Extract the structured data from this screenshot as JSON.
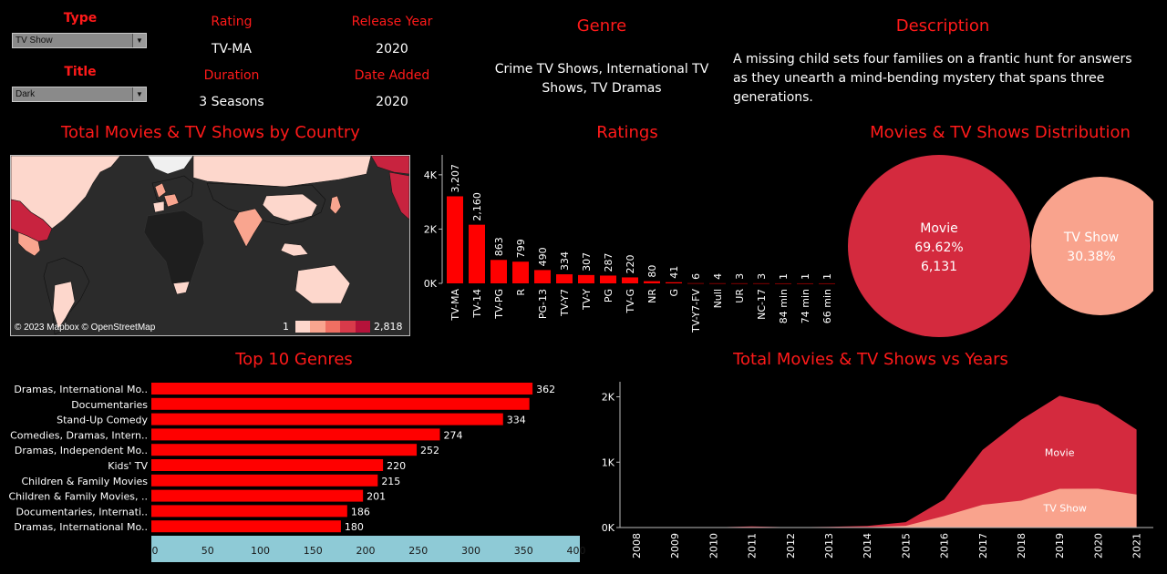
{
  "filters": {
    "type_label": "Type",
    "type_value": "TV Show",
    "title_label": "Title",
    "title_value": "Dark"
  },
  "details": {
    "rating_label": "Rating",
    "rating_value": "TV-MA",
    "release_label": "Release Year",
    "release_value": "2020",
    "duration_label": "Duration",
    "duration_value": "3 Seasons",
    "added_label": "Date Added",
    "added_value": "2020",
    "genre_label": "Genre",
    "genre_line1": "Crime TV Shows, International TV",
    "genre_line2": "Shows, TV Dramas",
    "desc_label": "Description",
    "desc_line1": "A missing child sets four families on a frantic hunt for answers",
    "desc_line2": "as they unearth a mind-bending mystery that spans three",
    "desc_line3": "generations."
  },
  "map": {
    "title": "Total Movies & TV Shows by Country",
    "attribution": "© 2023 Mapbox © OpenStreetMap",
    "legend_min": "1",
    "legend_max": "2,818",
    "legend_colors": [
      "#fdd7cc",
      "#f9a58f",
      "#ef6f62",
      "#d83a4a",
      "#b5123a"
    ]
  },
  "ratings": {
    "title": "Ratings",
    "y_ticks": [
      "4K",
      "2K",
      "0K"
    ]
  },
  "distribution": {
    "title": "Movies & TV Shows Distribution",
    "movie_label": "Movie",
    "movie_pct": "69.62%",
    "movie_count": "6,131",
    "tv_label": "TV Show",
    "tv_pct": "30.38%",
    "movie_color": "#d42a3e",
    "tv_color": "#f9a38d"
  },
  "genres": {
    "title": "Top  10 Genres",
    "x_ticks": [
      "0",
      "50",
      "100",
      "150",
      "200",
      "250",
      "300",
      "350",
      "400"
    ]
  },
  "years": {
    "title": "Total Movies & TV Shows vs Years",
    "y_ticks": [
      "2K",
      "1K",
      "0K"
    ],
    "movie_label": "Movie",
    "tv_label": "TV Show"
  },
  "chart_data": [
    {
      "type": "bar",
      "title": "Ratings",
      "categories": [
        "TV-MA",
        "TV-14",
        "TV-PG",
        "R",
        "PG-13",
        "TV-Y7",
        "TV-Y",
        "PG",
        "TV-G",
        "NR",
        "G",
        "TV-Y7-FV",
        "Null",
        "UR",
        "NC-17",
        "84 min",
        "74 min",
        "66 min"
      ],
      "values": [
        3207,
        2160,
        863,
        799,
        490,
        334,
        307,
        287,
        220,
        80,
        41,
        6,
        4,
        3,
        3,
        1,
        1,
        1
      ],
      "labels": [
        "3,207",
        "2,160",
        "863",
        "799",
        "490",
        "334",
        "307",
        "287",
        "220",
        "80",
        "41",
        "6",
        "4",
        "3",
        "3",
        "1",
        "1",
        "1"
      ],
      "ylim": [
        0,
        4700
      ]
    },
    {
      "type": "pie",
      "title": "Movies & TV Shows Distribution",
      "categories": [
        "Movie",
        "TV Show"
      ],
      "values": [
        69.62,
        30.38
      ]
    },
    {
      "type": "bar",
      "title": "Top  10 Genres",
      "orientation": "horizontal",
      "categories": [
        "Dramas, International Mo..",
        "Documentaries",
        "Stand-Up Comedy",
        "Comedies, Dramas, Intern..",
        "Dramas, Independent Mo..",
        "Kids' TV",
        "Children & Family Movies",
        "Children & Family Movies, ..",
        "Documentaries, Internati..",
        "Dramas, International Mo.."
      ],
      "values": [
        362,
        359,
        334,
        274,
        252,
        220,
        215,
        201,
        186,
        180
      ],
      "labels": [
        "362",
        "",
        "334",
        "274",
        "252",
        "220",
        "215",
        "201",
        "186",
        "180"
      ],
      "xlim": [
        0,
        400
      ]
    },
    {
      "type": "area",
      "title": "Total Movies & TV Shows vs Years",
      "x": [
        "2008",
        "2009",
        "2010",
        "2011",
        "2012",
        "2013",
        "2014",
        "2015",
        "2016",
        "2017",
        "2018",
        "2019",
        "2020",
        "2021"
      ],
      "series": [
        {
          "name": "Movie",
          "values": [
            1,
            2,
            1,
            13,
            3,
            6,
            19,
            56,
            253,
            839,
            1237,
            1424,
            1284,
            993
          ]
        },
        {
          "name": "TV Show",
          "values": [
            1,
            0,
            1,
            5,
            0,
            5,
            5,
            26,
            176,
            349,
            412,
            592,
            595,
            505
          ]
        }
      ],
      "ylim": [
        0,
        2300
      ]
    }
  ]
}
